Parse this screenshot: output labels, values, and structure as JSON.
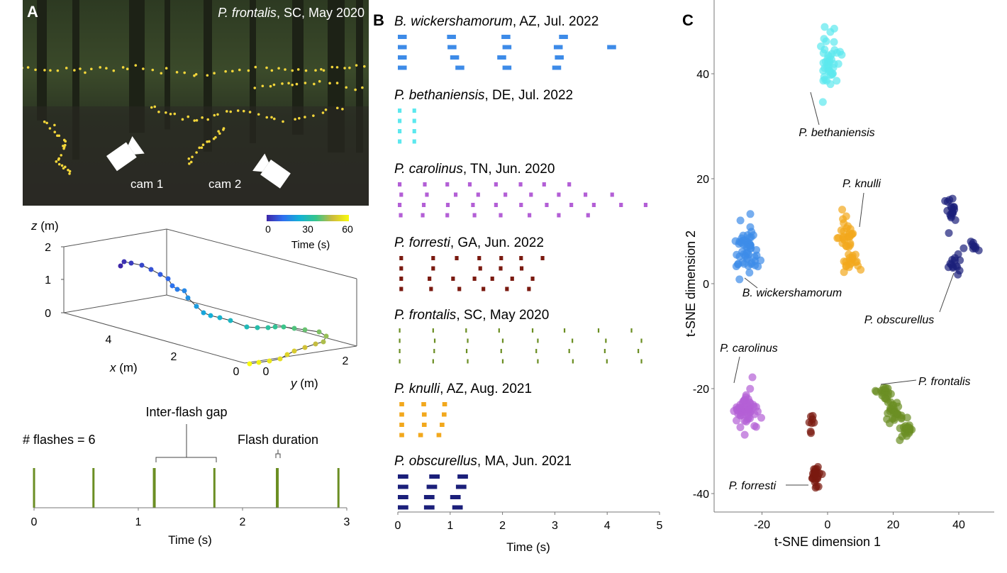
{
  "panel_labels": {
    "a": "A",
    "b": "B",
    "c": "C"
  },
  "panel_a": {
    "photo": {
      "caption_species": "P. frontalis",
      "caption_rest": ", SC, May 2020",
      "cam1_label": "cam 1",
      "cam2_label": "cam 2"
    },
    "trajectory": {
      "z_label_var": "z",
      "z_label_unit": " (m)",
      "x_label_var": "x",
      "x_label_unit": " (m)",
      "y_label_var": "y",
      "y_label_unit": " (m)",
      "z_ticks": [
        "0",
        "1",
        "2"
      ],
      "x_ticks": [
        "4",
        "2",
        "0"
      ],
      "y_ticks": [
        "0",
        "2"
      ],
      "colorbar": {
        "label": "Time (s)",
        "ticks": [
          "0",
          "30",
          "60"
        ],
        "range": [
          0,
          60
        ],
        "colormap": "parula"
      }
    },
    "flash_train": {
      "flash_count_label": "# flashes = 6",
      "gap_label": "Inter-flash gap",
      "duration_label": "Flash duration",
      "xlabel": "Time (s)",
      "x_ticks": [
        "0",
        "1",
        "2",
        "3"
      ],
      "color": "#6b8e23"
    }
  },
  "chart_data": [
    {
      "type": "line",
      "panel": "A-bottom",
      "xlabel": "Time (s)",
      "xlim": [
        0,
        3
      ],
      "flash_times": [
        0.0,
        0.57,
        1.15,
        1.73,
        2.33,
        2.92
      ],
      "flash_count": 6
    },
    {
      "type": "bar",
      "panel": "B",
      "xlabel": "Time (s)",
      "xlim": [
        0,
        5
      ],
      "x_ticks": [
        "0",
        "1",
        "2",
        "3",
        "4",
        "5"
      ],
      "series": [
        {
          "species": "B. wickershamorum",
          "rest": ", AZ, Jul. 2022",
          "color": "#3d8be8",
          "duration": 0.17,
          "trains": [
            [
              0,
              0.94,
              1.98,
              3.08
            ],
            [
              0,
              0.95,
              2.0,
              2.98,
              4.0
            ],
            [
              0,
              1.0,
              1.9,
              3.0
            ],
            [
              0,
              1.1,
              2.0,
              2.95
            ]
          ]
        },
        {
          "species": "P. bethaniensis",
          "rest": ", DE, Jul. 2022",
          "color": "#5ce8ee",
          "duration": 0.07,
          "trains": [
            [
              0,
              0.28
            ],
            [
              0,
              0.28
            ],
            [
              0,
              0.28
            ],
            [
              0,
              0.28
            ]
          ]
        },
        {
          "species": "P. carolinus",
          "rest": ", TN, Jun. 2020",
          "color": "#b35fd6",
          "duration": 0.07,
          "trains": [
            [
              0,
              0.48,
              0.91,
              1.34,
              1.84,
              2.31,
              2.76,
              3.24
            ],
            [
              0.03,
              0.52,
              1.07,
              1.5,
              2.02,
              2.51,
              3.04,
              3.55,
              4.06
            ],
            [
              0,
              0.46,
              0.92,
              1.4,
              1.84,
              2.32,
              2.81,
              3.28,
              3.71,
              4.23,
              4.7
            ],
            [
              0.02,
              0.44,
              0.91,
              1.43,
              1.93,
              2.48,
              3.04,
              3.6
            ]
          ]
        },
        {
          "species": "P. forresti",
          "rest": ", GA, Jun. 2022",
          "color": "#7a1a10",
          "duration": 0.07,
          "trains": [
            [
              0.03,
              0.64,
              1.09,
              1.52,
              1.94,
              2.32,
              2.73
            ],
            [
              0.03,
              0.64,
              1.54,
              1.93,
              2.33
            ],
            [
              0.03,
              0.57,
              1.02,
              1.43,
              1.77,
              2.15,
              2.54
            ],
            [
              0.03,
              0.6,
              1.14,
              1.6,
              2.05,
              2.47
            ]
          ]
        },
        {
          "species": "P. frontalis",
          "rest": ", SC, May 2020",
          "color": "#6b8e23",
          "duration": 0.03,
          "trains": [
            [
              0.02,
              0.66,
              1.29,
              1.92,
              2.56,
              3.17,
              3.82,
              4.45
            ],
            [
              0.02,
              0.69,
              1.32,
              1.99,
              2.66,
              3.32,
              3.96,
              4.64
            ],
            [
              0.02,
              0.68,
              1.3,
              1.96,
              2.63,
              3.26,
              3.94,
              4.58
            ],
            [
              0.02,
              0.66,
              1.32,
              1.99,
              2.66,
              3.33,
              3.98,
              4.64
            ]
          ]
        },
        {
          "species": "P. knulli",
          "rest": ", AZ, Aug. 2021",
          "color": "#f2a81d",
          "duration": 0.09,
          "trains": [
            [
              0.03,
              0.45,
              0.85
            ],
            [
              0.03,
              0.46,
              0.84
            ],
            [
              0.03,
              0.46,
              0.8
            ],
            [
              0.03,
              0.39,
              0.74
            ]
          ]
        },
        {
          "species": "P. obscurellus",
          "rest": ", MA, Jun. 2021",
          "color": "#1b1f7a",
          "duration": 0.2,
          "trains": [
            [
              0,
              0.6,
              1.14
            ],
            [
              0,
              0.55,
              1.11
            ],
            [
              0,
              0.5,
              1.0
            ],
            [
              0,
              0.5,
              1.04
            ]
          ]
        }
      ]
    },
    {
      "type": "scatter",
      "panel": "C",
      "xlabel": "t-SNE dimension 1",
      "ylabel": "t-SNE dimension 2",
      "xlim": [
        -34.6,
        50.8
      ],
      "ylim": [
        -43.5,
        54
      ],
      "x_ticks": [
        "-20",
        "0",
        "20",
        "40"
      ],
      "y_ticks": [
        "-40",
        "-20",
        "0",
        "20",
        "40"
      ],
      "grid": false,
      "clusters": [
        {
          "name": "P. bethaniensis",
          "color": "#5ce8ee",
          "blobs": [
            {
              "center": [
                0.5,
                42
              ],
              "spread": [
                1.6,
                2.6
              ],
              "n": 45
            }
          ]
        },
        {
          "name": "B. wickershamorum",
          "color": "#3d8be8",
          "blobs": [
            {
              "center": [
                -25,
                6.5
              ],
              "spread": [
                1.6,
                2.4
              ],
              "n": 55
            }
          ]
        },
        {
          "name": "P. knulli",
          "color": "#f2a81d",
          "blobs": [
            {
              "center": [
                5.5,
                9
              ],
              "spread": [
                1.3,
                1.8
              ],
              "n": 30
            },
            {
              "center": [
                7,
                4
              ],
              "spread": [
                1.5,
                0.8
              ],
              "n": 18
            }
          ]
        },
        {
          "name": "P. obscurellus",
          "color": "#1b1f7a",
          "blobs": [
            {
              "center": [
                38,
                14
              ],
              "spread": [
                0.9,
                1.4
              ],
              "n": 18
            },
            {
              "center": [
                39,
                4
              ],
              "spread": [
                0.8,
                1.2
              ],
              "n": 14
            },
            {
              "center": [
                44,
                7
              ],
              "spread": [
                0.9,
                0.6
              ],
              "n": 10
            }
          ]
        },
        {
          "name": "P. carolinus",
          "color": "#b35fd6",
          "blobs": [
            {
              "center": [
                -25,
                -24.5
              ],
              "spread": [
                1.8,
                2.2
              ],
              "n": 55
            }
          ]
        },
        {
          "name": "P. forresti",
          "color": "#7a1a10",
          "blobs": [
            {
              "center": [
                -5,
                -26.5
              ],
              "spread": [
                0.6,
                0.8
              ],
              "n": 8
            },
            {
              "center": [
                -3.5,
                -36.5
              ],
              "spread": [
                0.8,
                1.3
              ],
              "n": 25
            }
          ]
        },
        {
          "name": "P. frontalis",
          "color": "#6b8e23",
          "blobs": [
            {
              "center": [
                17,
                -21
              ],
              "spread": [
                1.2,
                1.0
              ],
              "n": 20
            },
            {
              "center": [
                20.5,
                -24.5
              ],
              "spread": [
                1.2,
                1.0
              ],
              "n": 25
            },
            {
              "center": [
                24,
                -27.5
              ],
              "spread": [
                1.0,
                0.8
              ],
              "n": 20
            },
            {
              "center": [
                22,
                -30
              ],
              "spread": [
                0.1,
                0.1
              ],
              "n": 1
            }
          ]
        }
      ]
    }
  ]
}
